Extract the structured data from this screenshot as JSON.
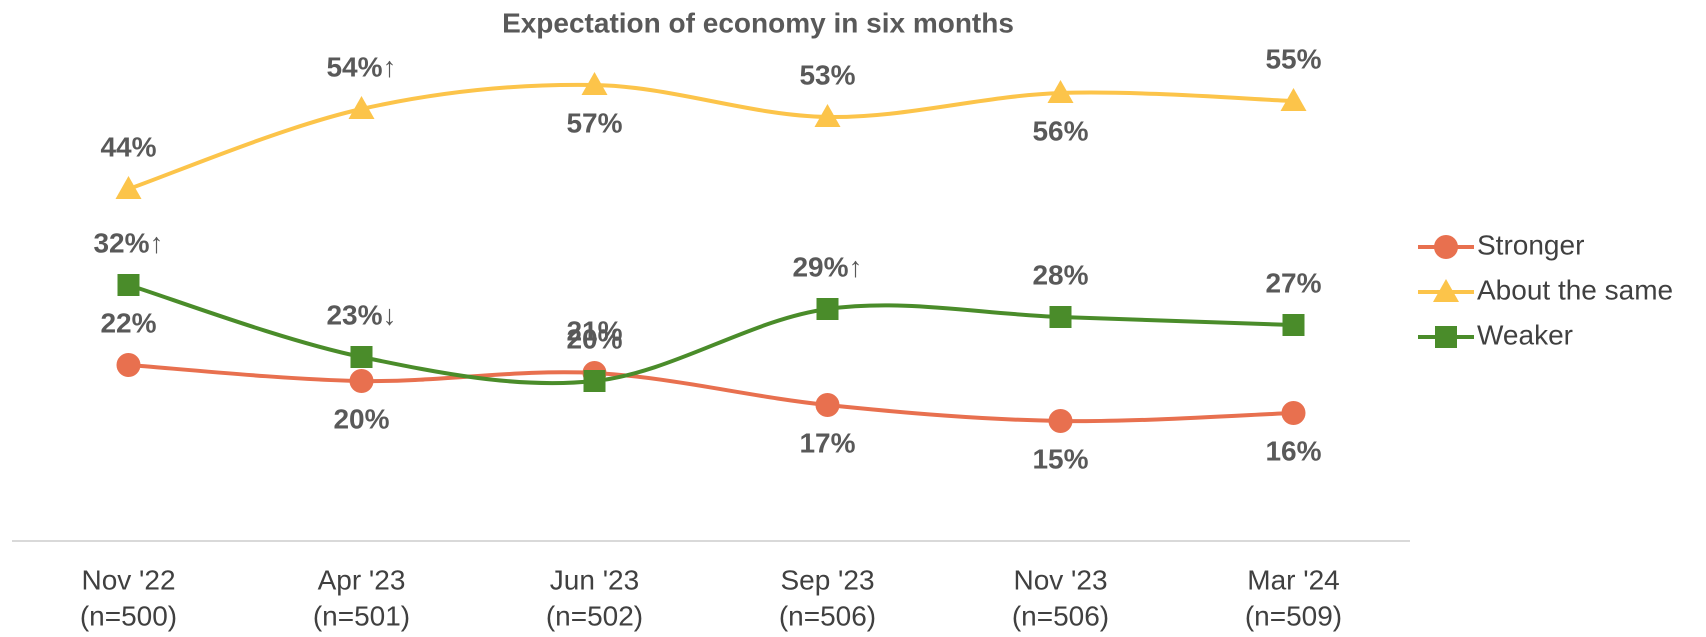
{
  "chart_data": {
    "type": "line",
    "title": "Expectation of economy in six months",
    "categories": [
      "Nov '22",
      "Apr '23",
      "Jun '23",
      "Sep '23",
      "Nov '23",
      "Mar '24"
    ],
    "sample_sizes": [
      "(n=500)",
      "(n=501)",
      "(n=502)",
      "(n=506)",
      "(n=506)",
      "(n=509)"
    ],
    "series": [
      {
        "name": "Stronger",
        "color": "#e8704f",
        "marker": "circle",
        "values": [
          22,
          20,
          21,
          17,
          15,
          16
        ],
        "value_labels": [
          "22%",
          "20%",
          "21%",
          "17%",
          "15%",
          "16%"
        ]
      },
      {
        "name": "About the same",
        "color": "#fcc44a",
        "marker": "triangle",
        "values": [
          44,
          54,
          57,
          53,
          56,
          55
        ],
        "value_labels": [
          "44%",
          "54%↑",
          "57%",
          "53%",
          "56%",
          "55%"
        ]
      },
      {
        "name": "Weaker",
        "color": "#4a8c2a",
        "marker": "square",
        "values": [
          32,
          23,
          20,
          29,
          28,
          27
        ],
        "value_labels": [
          "32%↑",
          "23%↓",
          "20%",
          "29%↑",
          "28%",
          "27%"
        ]
      }
    ],
    "ylim": [
      0,
      60
    ],
    "legend": "right"
  }
}
